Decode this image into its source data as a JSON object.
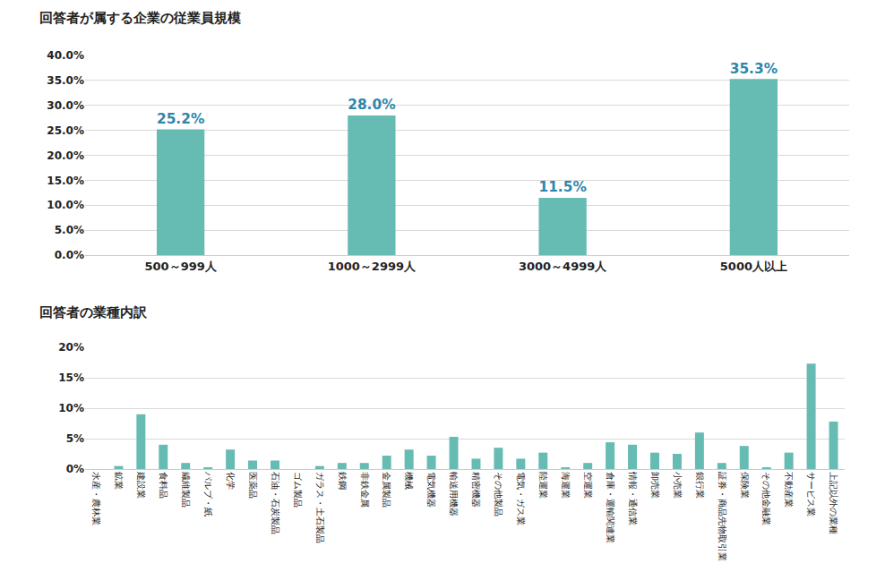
{
  "chart_data": [
    {
      "type": "bar",
      "title": "回答者が属する企業の従業員規模",
      "categories": [
        "500～999人",
        "1000～2999人",
        "3000～4999人",
        "5000人以上"
      ],
      "values": [
        25.2,
        28.0,
        11.5,
        35.3
      ],
      "value_labels": [
        "25.2%",
        "28.0%",
        "11.5%",
        "35.3%"
      ],
      "data_labels": true,
      "color": "#66bbb3",
      "ylim": [
        0,
        40
      ],
      "yticks": [
        {
          "value": 0,
          "label": "0.0%"
        },
        {
          "value": 5,
          "label": "5.0%"
        },
        {
          "value": 10,
          "label": "10.0%"
        },
        {
          "value": 15,
          "label": "15.0%"
        },
        {
          "value": 20,
          "label": "20.0%"
        },
        {
          "value": 25,
          "label": "25.0%"
        },
        {
          "value": 30,
          "label": "30.0%"
        },
        {
          "value": 35,
          "label": "35.0%"
        },
        {
          "value": 40,
          "label": "40.0%"
        }
      ],
      "grid": true
    },
    {
      "type": "bar",
      "title": "回答者の業種内訳",
      "categories": [
        "水産・農林業",
        "鉱業",
        "建設業",
        "食料品",
        "繊維製品",
        "パルプ・紙",
        "化学",
        "医薬品",
        "石油・石炭製品",
        "ゴム製品",
        "ガラス・土石製品",
        "鉄鋼",
        "非鉄金属",
        "金属製品",
        "機械",
        "電気機器",
        "輸送用機器",
        "精密機器",
        "その他製品",
        "電気・ガス業",
        "陸運業",
        "海運業",
        "空運業",
        "倉庫・運輸関連業",
        "情報・通信業",
        "卸売業",
        "小売業",
        "銀行業",
        "証券・商品先物取引業",
        "保険業",
        "その他金融業",
        "不動産業",
        "サービス業",
        "上記以外の業種"
      ],
      "values": [
        0,
        0.5,
        9.0,
        4.0,
        1.0,
        0.3,
        3.2,
        1.4,
        1.4,
        0,
        0.5,
        1.0,
        1.0,
        2.2,
        3.2,
        2.2,
        5.3,
        1.7,
        3.5,
        1.7,
        2.7,
        0.3,
        1.0,
        4.4,
        4.0,
        2.7,
        2.5,
        6.0,
        1.0,
        3.8,
        0.3,
        2.7,
        17.3,
        7.8
      ],
      "color": "#66bbb3",
      "ylim": [
        0,
        20
      ],
      "yticks": [
        {
          "value": 0,
          "label": "0%"
        },
        {
          "value": 5,
          "label": "5%"
        },
        {
          "value": 10,
          "label": "10%"
        },
        {
          "value": 15,
          "label": "15%"
        },
        {
          "value": 20,
          "label": "20%"
        }
      ],
      "grid": true
    }
  ]
}
